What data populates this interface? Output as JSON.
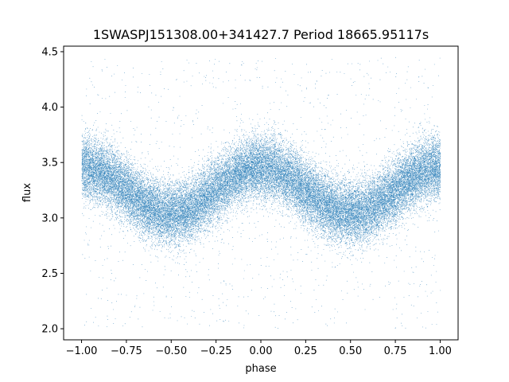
{
  "chart_data": {
    "type": "scatter",
    "title": "1SWASPJ151308.00+341427.7 Period 18665.95117s",
    "xlabel": "phase",
    "ylabel": "flux",
    "xlim": [
      -1.1,
      1.1
    ],
    "ylim": [
      1.9,
      4.55
    ],
    "xticks": [
      -1.0,
      -0.75,
      -0.5,
      -0.25,
      0.0,
      0.25,
      0.5,
      0.75,
      1.0
    ],
    "xtick_labels": [
      "−1.00",
      "−0.75",
      "−0.50",
      "−0.25",
      "0.00",
      "0.25",
      "0.50",
      "0.75",
      "1.00"
    ],
    "yticks": [
      2.0,
      2.5,
      3.0,
      3.5,
      4.0,
      4.5
    ],
    "ytick_labels": [
      "2.0",
      "2.5",
      "3.0",
      "3.5",
      "4.0",
      "4.5"
    ],
    "grid": false,
    "legend": "none",
    "series_color": "#1f77b4",
    "phase_range": [
      -1.0,
      1.0
    ],
    "approx_point_count": 40000,
    "light_curve_model": {
      "mean_flux": 3.25,
      "amplitude": 0.21,
      "maxima_phases": [
        -1.0,
        -0.05,
        1.0
      ],
      "minima_phases": [
        -0.5,
        0.5
      ],
      "typical_scatter": 0.14,
      "outlier_range": [
        2.0,
        4.45
      ]
    }
  }
}
